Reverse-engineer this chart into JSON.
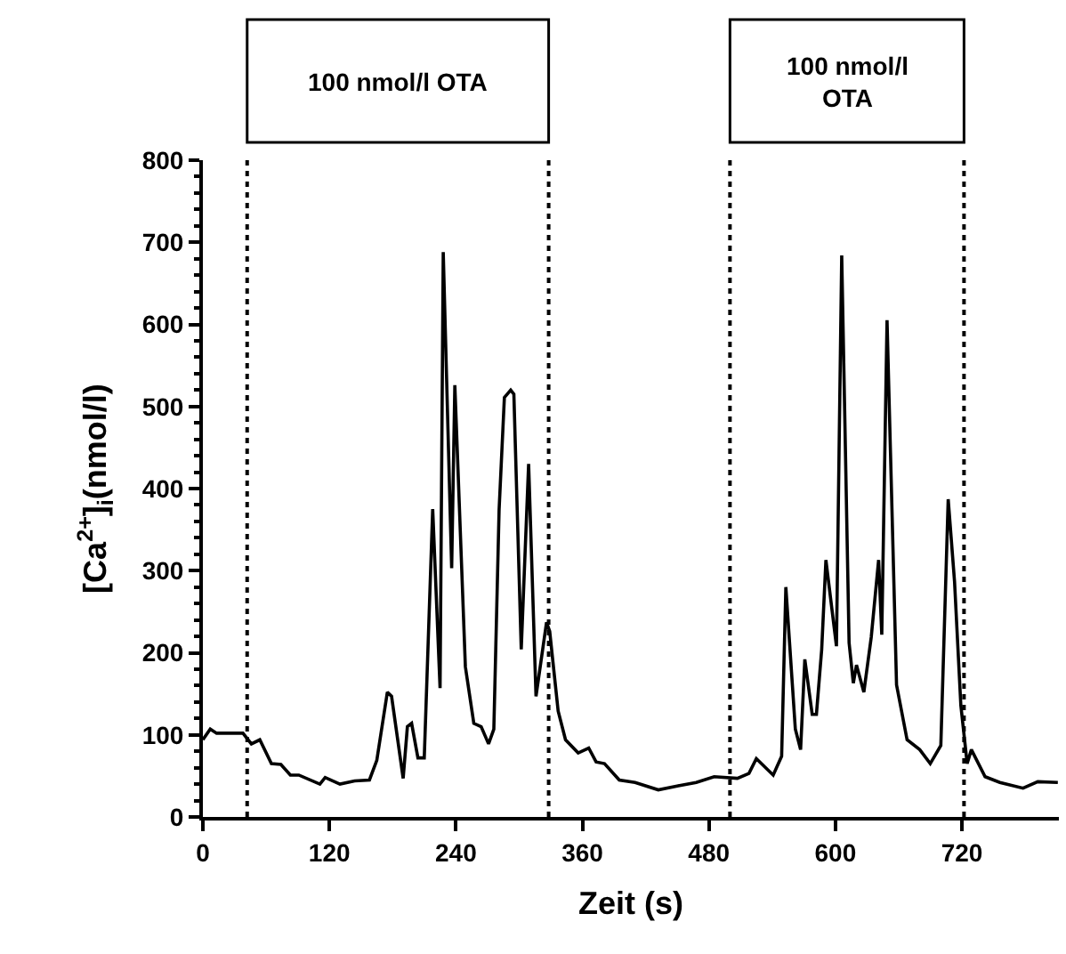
{
  "chart_data": {
    "type": "line",
    "xlabel": "Zeit (s)",
    "ylabel": "[Ca$^{2+}$]$_{i}$(nmol/l)",
    "x": [
      0,
      7,
      13,
      38,
      46,
      54,
      65,
      74,
      83,
      91,
      111,
      116,
      130,
      144,
      158,
      165,
      175,
      179,
      190,
      194,
      198,
      204,
      210,
      218,
      225,
      228,
      236,
      239,
      249,
      257,
      264,
      271,
      276,
      281,
      286,
      292,
      295,
      302,
      309,
      316,
      326,
      329,
      337,
      344,
      356,
      366,
      373,
      381,
      395,
      410,
      432,
      451,
      468,
      485,
      507,
      518,
      525,
      541,
      549,
      553,
      562,
      567,
      571,
      578,
      582,
      587,
      591,
      601,
      606,
      613,
      617,
      620,
      627,
      634,
      641,
      644,
      649,
      658,
      668,
      680,
      690,
      700,
      707,
      713,
      719,
      725,
      729,
      742,
      756,
      778,
      792,
      811
    ],
    "series": [
      {
        "color": "#000000",
        "values": [
          94,
          107,
          102,
          102,
          89,
          94,
          65,
          64,
          51,
          51,
          40,
          48,
          40,
          44,
          45,
          69,
          152,
          147,
          47,
          110,
          114,
          72,
          72,
          375,
          157,
          688,
          303,
          526,
          183,
          114,
          110,
          89,
          107,
          374,
          511,
          520,
          515,
          204,
          430,
          147,
          237,
          226,
          129,
          94,
          78,
          84,
          67,
          65,
          45,
          42,
          33,
          38,
          42,
          49,
          47,
          53,
          71,
          51,
          74,
          280,
          107,
          82,
          192,
          125,
          125,
          204,
          313,
          208,
          684,
          212,
          163,
          185,
          152,
          219,
          313,
          222,
          605,
          161,
          94,
          82,
          65,
          87,
          387,
          287,
          136,
          65,
          82,
          49,
          42,
          35,
          43,
          42
        ]
      }
    ],
    "xlim": [
      0,
      812
    ],
    "ylim": [
      0,
      800
    ],
    "xticks": [
      0,
      120,
      240,
      360,
      480,
      600,
      720
    ],
    "yticks": [
      0,
      100,
      200,
      300,
      400,
      500,
      600,
      700,
      800
    ],
    "ref_lines": [
      {
        "axis": "x",
        "value": 42,
        "line_style": "dotted",
        "color": "#000000"
      },
      {
        "axis": "x",
        "value": 328,
        "line_style": "dotted",
        "color": "#000000"
      },
      {
        "axis": "x",
        "value": 500,
        "line_style": "dotted",
        "color": "#000000"
      },
      {
        "axis": "x",
        "value": 722,
        "line_style": "dotted",
        "color": "#000000"
      }
    ],
    "annotations": [
      "100 nmol/l OTA",
      "100 nmol/l\nOTA"
    ],
    "marker": "none",
    "line_style": "solid"
  }
}
